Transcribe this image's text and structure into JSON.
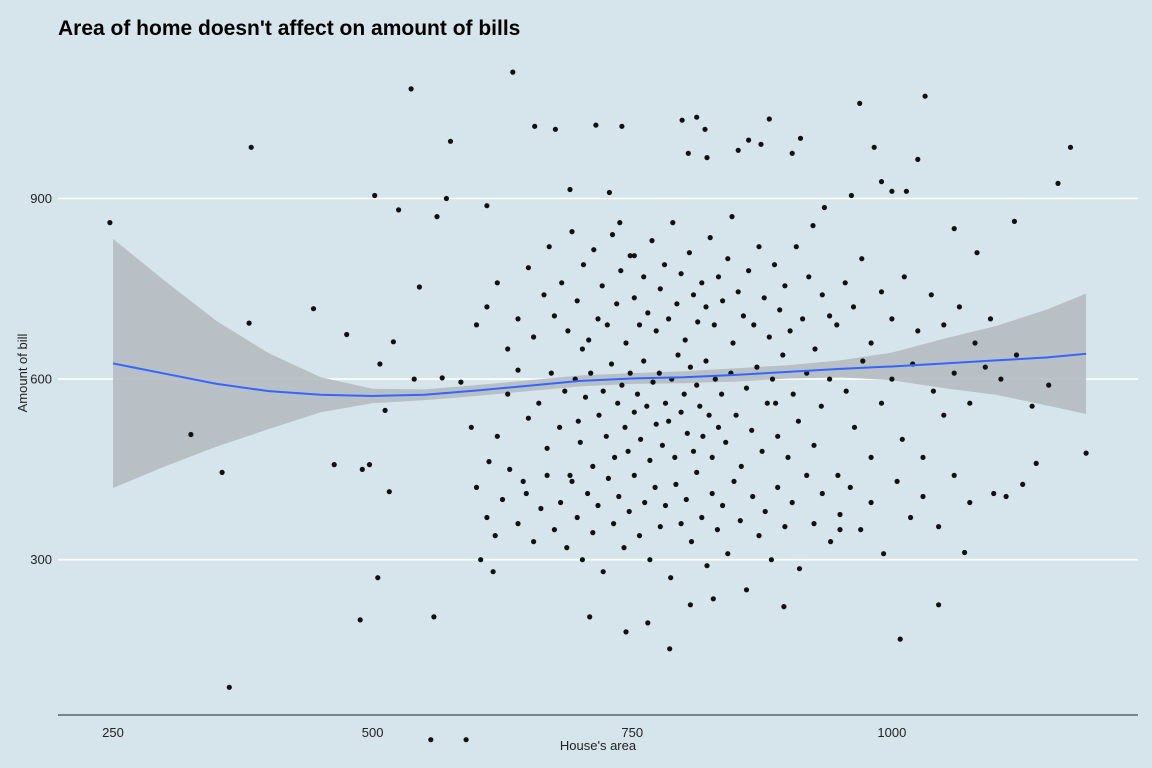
{
  "chart_data": {
    "type": "scatter",
    "title": "Area of home doesn't affect on amount of bills",
    "xlabel": "House's area",
    "ylabel": "Amount of bill",
    "xlim": [
      197,
      1237
    ],
    "ylim": [
      42,
      1150
    ],
    "x_ticks": [
      250,
      500,
      750,
      1000
    ],
    "x_tick_labels": [
      "250",
      "500",
      "750",
      "1000"
    ],
    "y_ticks": [
      300,
      600,
      900
    ],
    "y_tick_labels": [
      "300",
      "600",
      "900"
    ],
    "grid": "horizontal major only",
    "colors": {
      "background": "#d6e4ec",
      "points": "#111111",
      "smooth_line": "#3366ff",
      "confidence_band": "#b3b9be",
      "grid": "#ffffff",
      "axis": "#222222"
    },
    "smooth": {
      "x": [
        250,
        300,
        350,
        400,
        450,
        500,
        550,
        600,
        650,
        700,
        750,
        800,
        850,
        900,
        950,
        1000,
        1050,
        1100,
        1150,
        1187
      ],
      "y": [
        626,
        609,
        592,
        580,
        574,
        572,
        574,
        581,
        589,
        597,
        601,
        603,
        607,
        612,
        617,
        621,
        626,
        631,
        636,
        642
      ],
      "lower": [
        419,
        455,
        488,
        517,
        545,
        560,
        565,
        572,
        580,
        588,
        592,
        593,
        596,
        601,
        603,
        598,
        585,
        574,
        556,
        542
      ],
      "upper": [
        833,
        763,
        696,
        643,
        603,
        584,
        583,
        590,
        598,
        606,
        610,
        613,
        618,
        623,
        631,
        644,
        667,
        688,
        716,
        742
      ]
    },
    "points": [
      [
        247,
        860
      ],
      [
        325,
        508
      ],
      [
        355,
        445
      ],
      [
        362,
        88
      ],
      [
        381,
        693
      ],
      [
        383,
        985
      ],
      [
        443,
        717
      ],
      [
        463,
        458
      ],
      [
        475,
        674
      ],
      [
        488,
        200
      ],
      [
        490,
        450
      ],
      [
        497,
        458
      ],
      [
        502,
        905
      ],
      [
        505,
        270
      ],
      [
        507,
        625
      ],
      [
        512,
        548
      ],
      [
        516,
        413
      ],
      [
        520,
        662
      ],
      [
        525,
        881
      ],
      [
        537,
        1082
      ],
      [
        540,
        600
      ],
      [
        545,
        753
      ],
      [
        556,
        1
      ],
      [
        559,
        205
      ],
      [
        562,
        870
      ],
      [
        567,
        602
      ],
      [
        571,
        900
      ],
      [
        575,
        995
      ],
      [
        590,
        1
      ],
      [
        604,
        300
      ],
      [
        610,
        888
      ],
      [
        616,
        280
      ],
      [
        635,
        1110
      ],
      [
        656,
        1020
      ],
      [
        676,
        1015
      ],
      [
        690,
        915
      ],
      [
        702,
        650
      ],
      [
        709,
        205
      ],
      [
        715,
        1022
      ],
      [
        728,
        910
      ],
      [
        738,
        860
      ],
      [
        740,
        1020
      ],
      [
        744,
        180
      ],
      [
        752,
        805
      ],
      [
        765,
        195
      ],
      [
        786,
        152
      ],
      [
        798,
        1030
      ],
      [
        804,
        975
      ],
      [
        806,
        225
      ],
      [
        812,
        1035
      ],
      [
        820,
        1015
      ],
      [
        822,
        968
      ],
      [
        828,
        235
      ],
      [
        846,
        870
      ],
      [
        852,
        980
      ],
      [
        862,
        997
      ],
      [
        874,
        990
      ],
      [
        882,
        1032
      ],
      [
        888,
        560
      ],
      [
        896,
        222
      ],
      [
        904,
        975
      ],
      [
        912,
        1000
      ],
      [
        924,
        855
      ],
      [
        935,
        885
      ],
      [
        950,
        350
      ],
      [
        961,
        905
      ],
      [
        969,
        1058
      ],
      [
        983,
        985
      ],
      [
        990,
        928
      ],
      [
        1000,
        912
      ],
      [
        1008,
        168
      ],
      [
        1014,
        912
      ],
      [
        1025,
        965
      ],
      [
        1032,
        1070
      ],
      [
        1045,
        225
      ],
      [
        1060,
        850
      ],
      [
        1070,
        312
      ],
      [
        1082,
        810
      ],
      [
        1098,
        410
      ],
      [
        1110,
        405
      ],
      [
        1118,
        862
      ],
      [
        1126,
        425
      ],
      [
        1139,
        460
      ],
      [
        1151,
        590
      ],
      [
        1160,
        925
      ],
      [
        1172,
        985
      ],
      [
        1187,
        477
      ],
      [
        585,
        595
      ],
      [
        595,
        520
      ],
      [
        612,
        463
      ],
      [
        620,
        505
      ],
      [
        630,
        575
      ],
      [
        640,
        615
      ],
      [
        645,
        430
      ],
      [
        650,
        535
      ],
      [
        660,
        560
      ],
      [
        668,
        485
      ],
      [
        672,
        610
      ],
      [
        680,
        520
      ],
      [
        685,
        580
      ],
      [
        690,
        440
      ],
      [
        695,
        600
      ],
      [
        698,
        530
      ],
      [
        700,
        495
      ],
      [
        705,
        570
      ],
      [
        710,
        610
      ],
      [
        712,
        455
      ],
      [
        718,
        540
      ],
      [
        722,
        580
      ],
      [
        725,
        505
      ],
      [
        730,
        625
      ],
      [
        733,
        470
      ],
      [
        736,
        560
      ],
      [
        740,
        590
      ],
      [
        743,
        520
      ],
      [
        746,
        480
      ],
      [
        748,
        610
      ],
      [
        752,
        545
      ],
      [
        755,
        575
      ],
      [
        758,
        500
      ],
      [
        761,
        630
      ],
      [
        764,
        555
      ],
      [
        767,
        465
      ],
      [
        770,
        595
      ],
      [
        773,
        525
      ],
      [
        776,
        610
      ],
      [
        779,
        490
      ],
      [
        782,
        560
      ],
      [
        785,
        530
      ],
      [
        788,
        600
      ],
      [
        791,
        470
      ],
      [
        794,
        640
      ],
      [
        797,
        545
      ],
      [
        800,
        575
      ],
      [
        803,
        510
      ],
      [
        806,
        620
      ],
      [
        809,
        480
      ],
      [
        812,
        590
      ],
      [
        815,
        555
      ],
      [
        818,
        505
      ],
      [
        821,
        630
      ],
      [
        824,
        540
      ],
      [
        827,
        470
      ],
      [
        830,
        600
      ],
      [
        833,
        520
      ],
      [
        836,
        575
      ],
      [
        840,
        495
      ],
      [
        845,
        610
      ],
      [
        850,
        540
      ],
      [
        855,
        455
      ],
      [
        860,
        585
      ],
      [
        865,
        515
      ],
      [
        870,
        620
      ],
      [
        875,
        480
      ],
      [
        880,
        560
      ],
      [
        885,
        600
      ],
      [
        890,
        505
      ],
      [
        895,
        640
      ],
      [
        900,
        470
      ],
      [
        905,
        575
      ],
      [
        910,
        530
      ],
      [
        918,
        610
      ],
      [
        925,
        490
      ],
      [
        932,
        555
      ],
      [
        940,
        600
      ],
      [
        948,
        440
      ],
      [
        956,
        580
      ],
      [
        964,
        520
      ],
      [
        972,
        630
      ],
      [
        980,
        470
      ],
      [
        990,
        560
      ],
      [
        1000,
        600
      ],
      [
        1010,
        500
      ],
      [
        1020,
        625
      ],
      [
        1030,
        470
      ],
      [
        1040,
        580
      ],
      [
        1050,
        540
      ],
      [
        1060,
        610
      ],
      [
        1075,
        560
      ],
      [
        1090,
        620
      ],
      [
        1105,
        600
      ],
      [
        1120,
        640
      ],
      [
        1135,
        555
      ],
      [
        600,
        690
      ],
      [
        610,
        720
      ],
      [
        620,
        760
      ],
      [
        630,
        650
      ],
      [
        640,
        700
      ],
      [
        650,
        785
      ],
      [
        655,
        670
      ],
      [
        665,
        740
      ],
      [
        670,
        820
      ],
      [
        675,
        705
      ],
      [
        682,
        760
      ],
      [
        688,
        680
      ],
      [
        692,
        845
      ],
      [
        697,
        730
      ],
      [
        703,
        790
      ],
      [
        708,
        665
      ],
      [
        713,
        815
      ],
      [
        717,
        700
      ],
      [
        721,
        755
      ],
      [
        726,
        690
      ],
      [
        731,
        840
      ],
      [
        735,
        725
      ],
      [
        739,
        780
      ],
      [
        744,
        660
      ],
      [
        748,
        805
      ],
      [
        752,
        735
      ],
      [
        757,
        690
      ],
      [
        761,
        770
      ],
      [
        765,
        710
      ],
      [
        769,
        830
      ],
      [
        773,
        680
      ],
      [
        777,
        750
      ],
      [
        781,
        790
      ],
      [
        785,
        700
      ],
      [
        789,
        860
      ],
      [
        793,
        725
      ],
      [
        797,
        775
      ],
      [
        801,
        665
      ],
      [
        805,
        810
      ],
      [
        809,
        740
      ],
      [
        813,
        695
      ],
      [
        817,
        760
      ],
      [
        821,
        720
      ],
      [
        825,
        835
      ],
      [
        829,
        690
      ],
      [
        833,
        770
      ],
      [
        837,
        730
      ],
      [
        842,
        800
      ],
      [
        847,
        660
      ],
      [
        852,
        745
      ],
      [
        857,
        705
      ],
      [
        862,
        780
      ],
      [
        867,
        690
      ],
      [
        872,
        820
      ],
      [
        877,
        735
      ],
      [
        882,
        670
      ],
      [
        887,
        790
      ],
      [
        892,
        715
      ],
      [
        897,
        755
      ],
      [
        902,
        680
      ],
      [
        908,
        820
      ],
      [
        914,
        700
      ],
      [
        920,
        770
      ],
      [
        926,
        650
      ],
      [
        933,
        740
      ],
      [
        940,
        705
      ],
      [
        947,
        690
      ],
      [
        955,
        760
      ],
      [
        963,
        720
      ],
      [
        971,
        800
      ],
      [
        980,
        660
      ],
      [
        990,
        745
      ],
      [
        1000,
        700
      ],
      [
        1012,
        770
      ],
      [
        1025,
        680
      ],
      [
        1038,
        740
      ],
      [
        1050,
        690
      ],
      [
        1065,
        720
      ],
      [
        1080,
        660
      ],
      [
        1095,
        700
      ],
      [
        600,
        420
      ],
      [
        610,
        370
      ],
      [
        618,
        340
      ],
      [
        625,
        400
      ],
      [
        632,
        450
      ],
      [
        640,
        360
      ],
      [
        648,
        410
      ],
      [
        655,
        330
      ],
      [
        662,
        385
      ],
      [
        668,
        440
      ],
      [
        675,
        350
      ],
      [
        681,
        395
      ],
      [
        687,
        320
      ],
      [
        692,
        430
      ],
      [
        697,
        370
      ],
      [
        702,
        300
      ],
      [
        707,
        410
      ],
      [
        712,
        345
      ],
      [
        717,
        390
      ],
      [
        722,
        280
      ],
      [
        727,
        435
      ],
      [
        732,
        360
      ],
      [
        737,
        405
      ],
      [
        742,
        320
      ],
      [
        747,
        380
      ],
      [
        752,
        440
      ],
      [
        757,
        340
      ],
      [
        762,
        395
      ],
      [
        767,
        300
      ],
      [
        772,
        420
      ],
      [
        777,
        355
      ],
      [
        782,
        390
      ],
      [
        787,
        270
      ],
      [
        792,
        425
      ],
      [
        797,
        360
      ],
      [
        802,
        400
      ],
      [
        807,
        330
      ],
      [
        812,
        445
      ],
      [
        817,
        370
      ],
      [
        822,
        290
      ],
      [
        827,
        410
      ],
      [
        832,
        350
      ],
      [
        837,
        390
      ],
      [
        842,
        310
      ],
      [
        848,
        430
      ],
      [
        854,
        365
      ],
      [
        860,
        250
      ],
      [
        866,
        405
      ],
      [
        872,
        340
      ],
      [
        878,
        380
      ],
      [
        884,
        300
      ],
      [
        890,
        420
      ],
      [
        897,
        355
      ],
      [
        904,
        395
      ],
      [
        911,
        285
      ],
      [
        918,
        440
      ],
      [
        925,
        360
      ],
      [
        933,
        410
      ],
      [
        941,
        330
      ],
      [
        950,
        375
      ],
      [
        960,
        420
      ],
      [
        970,
        350
      ],
      [
        980,
        395
      ],
      [
        992,
        310
      ],
      [
        1005,
        430
      ],
      [
        1018,
        370
      ],
      [
        1030,
        405
      ],
      [
        1045,
        355
      ],
      [
        1060,
        440
      ],
      [
        1075,
        395
      ]
    ]
  }
}
